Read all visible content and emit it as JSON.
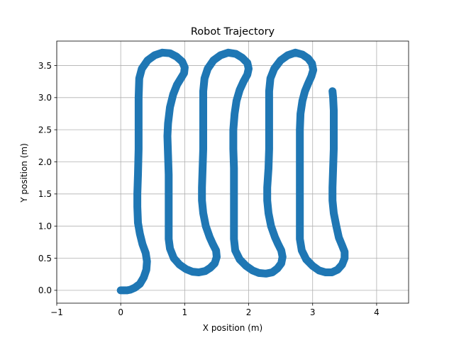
{
  "chart_data": {
    "type": "scatter",
    "title": "Robot Trajectory",
    "xlabel": "X position (m)",
    "ylabel": "Y position (m)",
    "xlim": [
      -1,
      4.5
    ],
    "ylim": [
      -0.2,
      3.88
    ],
    "xticks": [
      -1,
      0,
      1,
      2,
      3,
      4
    ],
    "xtick_labels": [
      "−1",
      "0",
      "1",
      "2",
      "3",
      "4"
    ],
    "yticks": [
      0.0,
      0.5,
      1.0,
      1.5,
      2.0,
      2.5,
      3.0,
      3.5
    ],
    "ytick_labels": [
      "0.0",
      "0.5",
      "1.0",
      "1.5",
      "2.0",
      "2.5",
      "3.0",
      "3.5"
    ],
    "grid": true,
    "series": [
      {
        "color": "#1f77b4",
        "points": [
          [
            0.0,
            0.0
          ],
          [
            0.05,
            0.0
          ],
          [
            0.1,
            0.0
          ],
          [
            0.15,
            0.01
          ],
          [
            0.22,
            0.04
          ],
          [
            0.3,
            0.1
          ],
          [
            0.36,
            0.2
          ],
          [
            0.4,
            0.32
          ],
          [
            0.41,
            0.45
          ],
          [
            0.39,
            0.58
          ],
          [
            0.34,
            0.72
          ],
          [
            0.3,
            0.88
          ],
          [
            0.27,
            1.05
          ],
          [
            0.26,
            1.3
          ],
          [
            0.26,
            1.5
          ],
          [
            0.27,
            1.8
          ],
          [
            0.28,
            2.2
          ],
          [
            0.28,
            2.6
          ],
          [
            0.28,
            3.0
          ],
          [
            0.29,
            3.3
          ],
          [
            0.33,
            3.45
          ],
          [
            0.42,
            3.58
          ],
          [
            0.53,
            3.66
          ],
          [
            0.65,
            3.7
          ],
          [
            0.77,
            3.69
          ],
          [
            0.87,
            3.64
          ],
          [
            0.96,
            3.56
          ],
          [
            1.0,
            3.47
          ],
          [
            0.99,
            3.38
          ],
          [
            0.94,
            3.3
          ],
          [
            0.88,
            3.2
          ],
          [
            0.82,
            3.05
          ],
          [
            0.77,
            2.85
          ],
          [
            0.74,
            2.6
          ],
          [
            0.73,
            2.4
          ],
          [
            0.74,
            2.1
          ],
          [
            0.75,
            1.8
          ],
          [
            0.75,
            1.5
          ],
          [
            0.75,
            1.2
          ],
          [
            0.75,
            1.0
          ],
          [
            0.75,
            0.8
          ],
          [
            0.77,
            0.65
          ],
          [
            0.83,
            0.5
          ],
          [
            0.92,
            0.4
          ],
          [
            1.02,
            0.33
          ],
          [
            1.12,
            0.29
          ],
          [
            1.22,
            0.28
          ],
          [
            1.32,
            0.3
          ],
          [
            1.4,
            0.35
          ],
          [
            1.47,
            0.42
          ],
          [
            1.5,
            0.52
          ],
          [
            1.49,
            0.62
          ],
          [
            1.44,
            0.72
          ],
          [
            1.39,
            0.83
          ],
          [
            1.33,
            1.0
          ],
          [
            1.29,
            1.2
          ],
          [
            1.27,
            1.4
          ],
          [
            1.27,
            1.6
          ],
          [
            1.28,
            1.9
          ],
          [
            1.29,
            2.2
          ],
          [
            1.29,
            2.5
          ],
          [
            1.29,
            2.8
          ],
          [
            1.29,
            3.1
          ],
          [
            1.31,
            3.3
          ],
          [
            1.36,
            3.45
          ],
          [
            1.45,
            3.58
          ],
          [
            1.56,
            3.66
          ],
          [
            1.68,
            3.7
          ],
          [
            1.8,
            3.68
          ],
          [
            1.9,
            3.62
          ],
          [
            1.98,
            3.54
          ],
          [
            2.0,
            3.45
          ],
          [
            1.98,
            3.36
          ],
          [
            1.92,
            3.25
          ],
          [
            1.86,
            3.12
          ],
          [
            1.81,
            2.95
          ],
          [
            1.78,
            2.75
          ],
          [
            1.76,
            2.5
          ],
          [
            1.76,
            2.2
          ],
          [
            1.77,
            1.9
          ],
          [
            1.77,
            1.6
          ],
          [
            1.77,
            1.3
          ],
          [
            1.77,
            1.0
          ],
          [
            1.77,
            0.8
          ],
          [
            1.79,
            0.62
          ],
          [
            1.86,
            0.48
          ],
          [
            1.96,
            0.38
          ],
          [
            2.06,
            0.31
          ],
          [
            2.16,
            0.27
          ],
          [
            2.27,
            0.26
          ],
          [
            2.37,
            0.28
          ],
          [
            2.45,
            0.34
          ],
          [
            2.51,
            0.42
          ],
          [
            2.53,
            0.52
          ],
          [
            2.51,
            0.62
          ],
          [
            2.46,
            0.72
          ],
          [
            2.41,
            0.83
          ],
          [
            2.35,
            1.0
          ],
          [
            2.31,
            1.2
          ],
          [
            2.29,
            1.4
          ],
          [
            2.29,
            1.6
          ],
          [
            2.31,
            1.9
          ],
          [
            2.32,
            2.2
          ],
          [
            2.32,
            2.5
          ],
          [
            2.32,
            2.8
          ],
          [
            2.32,
            3.1
          ],
          [
            2.34,
            3.3
          ],
          [
            2.4,
            3.45
          ],
          [
            2.5,
            3.58
          ],
          [
            2.61,
            3.66
          ],
          [
            2.73,
            3.7
          ],
          [
            2.84,
            3.67
          ],
          [
            2.93,
            3.61
          ],
          [
            2.99,
            3.53
          ],
          [
            3.01,
            3.43
          ],
          [
            2.98,
            3.33
          ],
          [
            2.93,
            3.22
          ],
          [
            2.88,
            3.1
          ],
          [
            2.84,
            2.95
          ],
          [
            2.81,
            2.75
          ],
          [
            2.8,
            2.5
          ],
          [
            2.8,
            2.2
          ],
          [
            2.8,
            1.9
          ],
          [
            2.8,
            1.6
          ],
          [
            2.8,
            1.3
          ],
          [
            2.8,
            1.0
          ],
          [
            2.8,
            0.8
          ],
          [
            2.83,
            0.62
          ],
          [
            2.9,
            0.48
          ],
          [
            3.0,
            0.38
          ],
          [
            3.1,
            0.31
          ],
          [
            3.2,
            0.28
          ],
          [
            3.3,
            0.28
          ],
          [
            3.39,
            0.32
          ],
          [
            3.46,
            0.4
          ],
          [
            3.5,
            0.5
          ],
          [
            3.5,
            0.6
          ],
          [
            3.46,
            0.7
          ],
          [
            3.41,
            0.82
          ],
          [
            3.37,
            1.0
          ],
          [
            3.33,
            1.2
          ],
          [
            3.31,
            1.4
          ],
          [
            3.31,
            1.6
          ],
          [
            3.32,
            1.9
          ],
          [
            3.33,
            2.2
          ],
          [
            3.33,
            2.5
          ],
          [
            3.33,
            2.8
          ],
          [
            3.32,
            3.0
          ],
          [
            3.31,
            3.1
          ]
        ]
      }
    ]
  }
}
